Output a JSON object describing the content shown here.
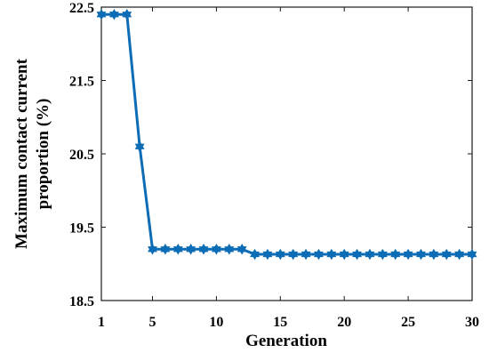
{
  "chart_data": {
    "type": "line",
    "xlabel": "Generation",
    "ylabel_lines": [
      "Maximum contact current",
      "proportion (%)"
    ],
    "xlim": [
      1,
      30
    ],
    "ylim": [
      18.5,
      22.5
    ],
    "xticks": [
      1,
      5,
      10,
      15,
      20,
      25,
      30
    ],
    "yticks": [
      18.5,
      19.5,
      20.5,
      21.5,
      22.5
    ],
    "ytick_labels": [
      "18.5",
      "19.5",
      "20.5",
      "21.5",
      "22.5"
    ],
    "grid": false,
    "box": true,
    "series": [
      {
        "color": "#0c6cb5",
        "marker": "hexagram",
        "x": [
          1,
          2,
          3,
          4,
          5,
          6,
          7,
          8,
          9,
          10,
          11,
          12,
          13,
          14,
          15,
          16,
          17,
          18,
          19,
          20,
          21,
          22,
          23,
          24,
          25,
          26,
          27,
          28,
          29,
          30
        ],
        "y": [
          22.4,
          22.4,
          22.4,
          20.6,
          19.2,
          19.2,
          19.2,
          19.2,
          19.2,
          19.2,
          19.2,
          19.2,
          19.13,
          19.13,
          19.13,
          19.13,
          19.13,
          19.13,
          19.13,
          19.13,
          19.13,
          19.13,
          19.13,
          19.13,
          19.13,
          19.13,
          19.13,
          19.13,
          19.13,
          19.13
        ]
      }
    ]
  }
}
